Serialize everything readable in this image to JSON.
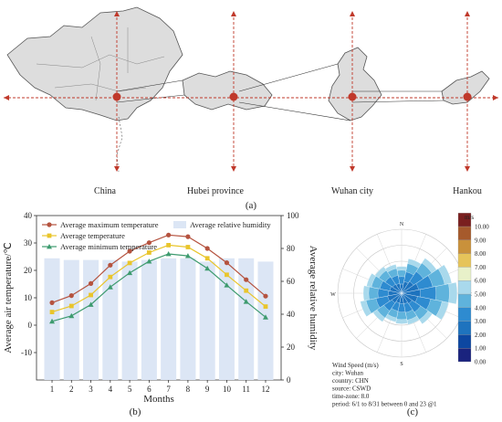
{
  "panels": {
    "a": {
      "tag": "(a)",
      "map_labels": [
        "China",
        "Hubei province",
        "Wuhan city",
        "Hankou"
      ]
    },
    "b": {
      "tag": "(b)"
    },
    "c": {
      "tag": "(c)"
    }
  },
  "colors": {
    "max": "#b5533f",
    "avg": "#e9c52b",
    "min": "#3e9b6f",
    "humidity": "#dce6f5",
    "map_fill": "#dddddd",
    "map_dot": "#c0392b",
    "crosshair": "#c0392b"
  },
  "chart_data": [
    {
      "type": "line",
      "x": [
        1,
        2,
        3,
        4,
        5,
        6,
        7,
        8,
        9,
        10,
        11,
        12
      ],
      "xlabel": "Months",
      "ylabel": "Average air temperature/℃",
      "ylim": [
        -20,
        40
      ],
      "yticks": [
        -10,
        0,
        10,
        20,
        30,
        40
      ],
      "y2label": "Average relative humidity",
      "y2lim": [
        0,
        100
      ],
      "y2ticks": [
        0,
        20,
        40,
        60,
        80,
        100
      ],
      "legend_position": "top-left",
      "series": [
        {
          "name": "Average maximum temperature",
          "axis": "left",
          "marker": "circle",
          "color": "#b5533f",
          "values": [
            8.2,
            10.8,
            15.2,
            21.9,
            27.0,
            30.1,
            32.9,
            32.3,
            28.0,
            22.8,
            16.6,
            10.6
          ]
        },
        {
          "name": "Average temperature",
          "axis": "left",
          "marker": "square",
          "color": "#e9c52b",
          "values": [
            4.8,
            7.0,
            11.0,
            17.6,
            22.7,
            26.5,
            29.2,
            28.5,
            24.4,
            18.4,
            12.6,
            6.8
          ]
        },
        {
          "name": "Average minimum temperature",
          "axis": "left",
          "marker": "triangle",
          "color": "#3e9b6f",
          "values": [
            1.4,
            3.4,
            7.5,
            13.9,
            19.1,
            23.3,
            26.0,
            25.3,
            20.7,
            14.6,
            8.6,
            2.9
          ]
        },
        {
          "name": "Average relative humidity",
          "axis": "right",
          "type": "bar",
          "color": "#dce6f5",
          "values": [
            74,
            73,
            73,
            73,
            72,
            73,
            74,
            74,
            72,
            74,
            74,
            72
          ]
        }
      ]
    },
    {
      "type": "wind-rose",
      "directions": [
        "N",
        "NNE",
        "NE",
        "ENE",
        "E",
        "ESE",
        "SE",
        "SSE",
        "S",
        "SSW",
        "SW",
        "WSW",
        "W",
        "WNW",
        "NW",
        "NNW"
      ],
      "compass_labels": [
        "N",
        "E",
        "S",
        "W"
      ],
      "speed_unit": "m/s",
      "speed_bins": [
        "0.00",
        "1.00",
        "2.00",
        "3.00",
        "4.00",
        "5.00",
        "6.00",
        "7.00",
        "8.00",
        "9.00",
        "10.00"
      ],
      "colorbar": [
        "#1a237e",
        "#0d47a1",
        "#1e73be",
        "#2e8bd0",
        "#5fb3dc",
        "#a9d9ec",
        "#e8f1c9",
        "#e6c45a",
        "#c9913b",
        "#a65a2c",
        "#7a1f1f"
      ],
      "frequency": [
        0.42,
        0.55,
        0.66,
        0.8,
        0.87,
        0.75,
        0.58,
        0.5,
        0.48,
        0.46,
        0.54,
        0.66,
        0.6,
        0.56,
        0.5,
        0.46
      ],
      "info_lines": [
        "Wind Speed (m/s)",
        "city: Wuhan",
        "country: CHN",
        "source: CSWD",
        "time-zone: 8.0",
        "period: 6/1 to 8/31 between 0 and 23 @1"
      ]
    }
  ]
}
